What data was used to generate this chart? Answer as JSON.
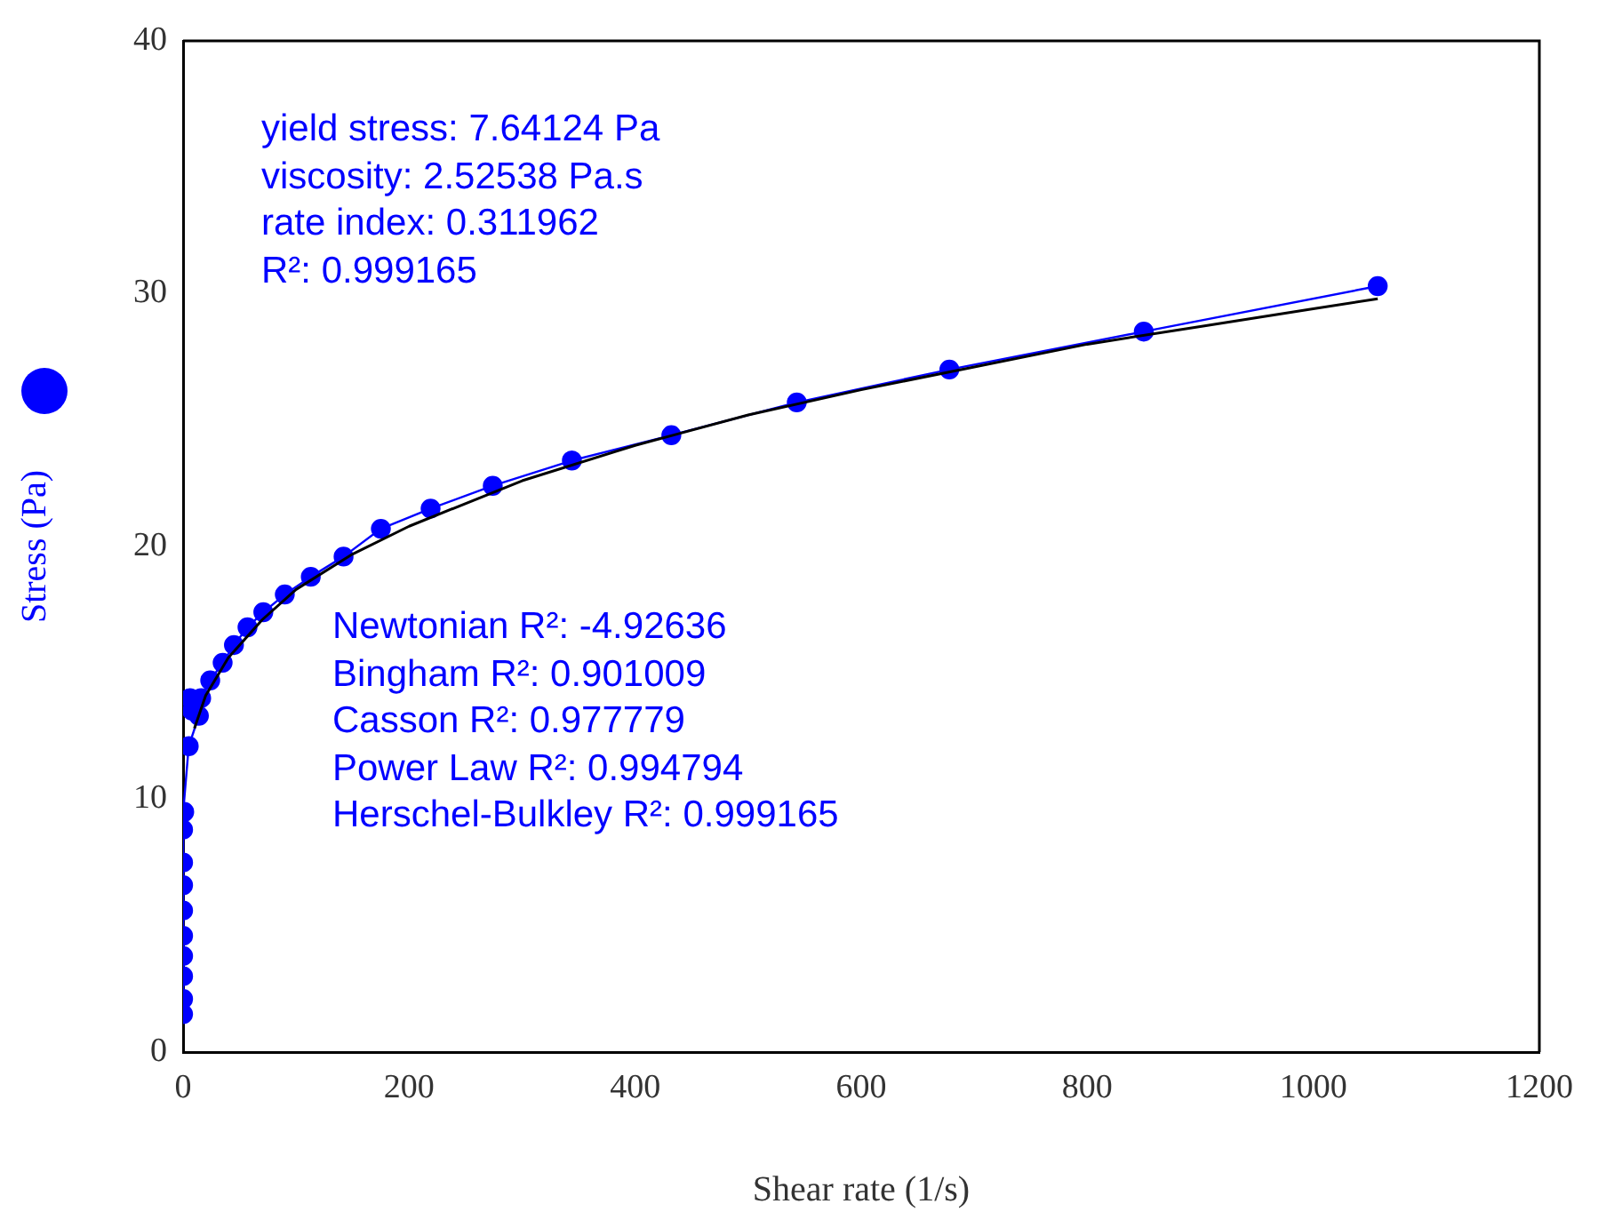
{
  "chart_data": {
    "type": "line",
    "xlabel": "Shear rate (1/s)",
    "ylabel": "Stress (Pa)",
    "xlim": [
      0,
      1200
    ],
    "xticks": [
      0,
      200,
      400,
      600,
      800,
      1000,
      1200
    ],
    "ylim": [
      0,
      40
    ],
    "yticks": [
      0,
      10,
      20,
      30,
      40
    ],
    "grid": false,
    "legend": false,
    "marker": "circle",
    "series": [
      {
        "color": "#0000ff",
        "x": [
          0,
          0,
          0,
          0,
          0,
          0,
          0,
          0,
          0,
          1,
          5,
          14,
          6,
          8,
          16,
          24,
          35,
          45,
          57,
          71,
          90,
          113,
          142,
          175,
          219,
          274,
          344,
          432,
          543,
          678,
          850,
          1057
        ],
        "values": [
          1.5,
          2.1,
          3.0,
          3.8,
          4.6,
          5.6,
          6.6,
          7.5,
          8.8,
          9.5,
          12.1,
          13.3,
          14.0,
          13.5,
          14.0,
          14.7,
          15.4,
          16.1,
          16.8,
          17.4,
          18.1,
          18.8,
          19.6,
          20.7,
          21.5,
          22.4,
          23.4,
          24.4,
          25.7,
          27.0,
          28.5,
          30.3
        ]
      },
      {
        "type": "line",
        "color": "#000000",
        "marker": "none",
        "x": [
          10,
          20,
          40,
          70,
          100,
          150,
          200,
          300,
          400,
          500,
          600,
          700,
          800,
          900,
          1000,
          1057
        ],
        "values": [
          12.8,
          14.1,
          15.6,
          17.1,
          18.3,
          19.7,
          20.8,
          22.6,
          24.0,
          25.2,
          26.2,
          27.1,
          28.0,
          28.7,
          29.4,
          29.8
        ]
      }
    ],
    "annotations": [
      "yield stress: 7.64124 Pa",
      "viscosity: 2.52538 Pa.s",
      "rate index: 0.311962",
      "R²: 0.999165",
      "Newtonian R²: -4.92636",
      "Bingham R²: 0.901009",
      "Casson R²: 0.977779",
      "Power Law R²: 0.994794",
      "Herschel-Bulkley R²: 0.999165"
    ]
  }
}
